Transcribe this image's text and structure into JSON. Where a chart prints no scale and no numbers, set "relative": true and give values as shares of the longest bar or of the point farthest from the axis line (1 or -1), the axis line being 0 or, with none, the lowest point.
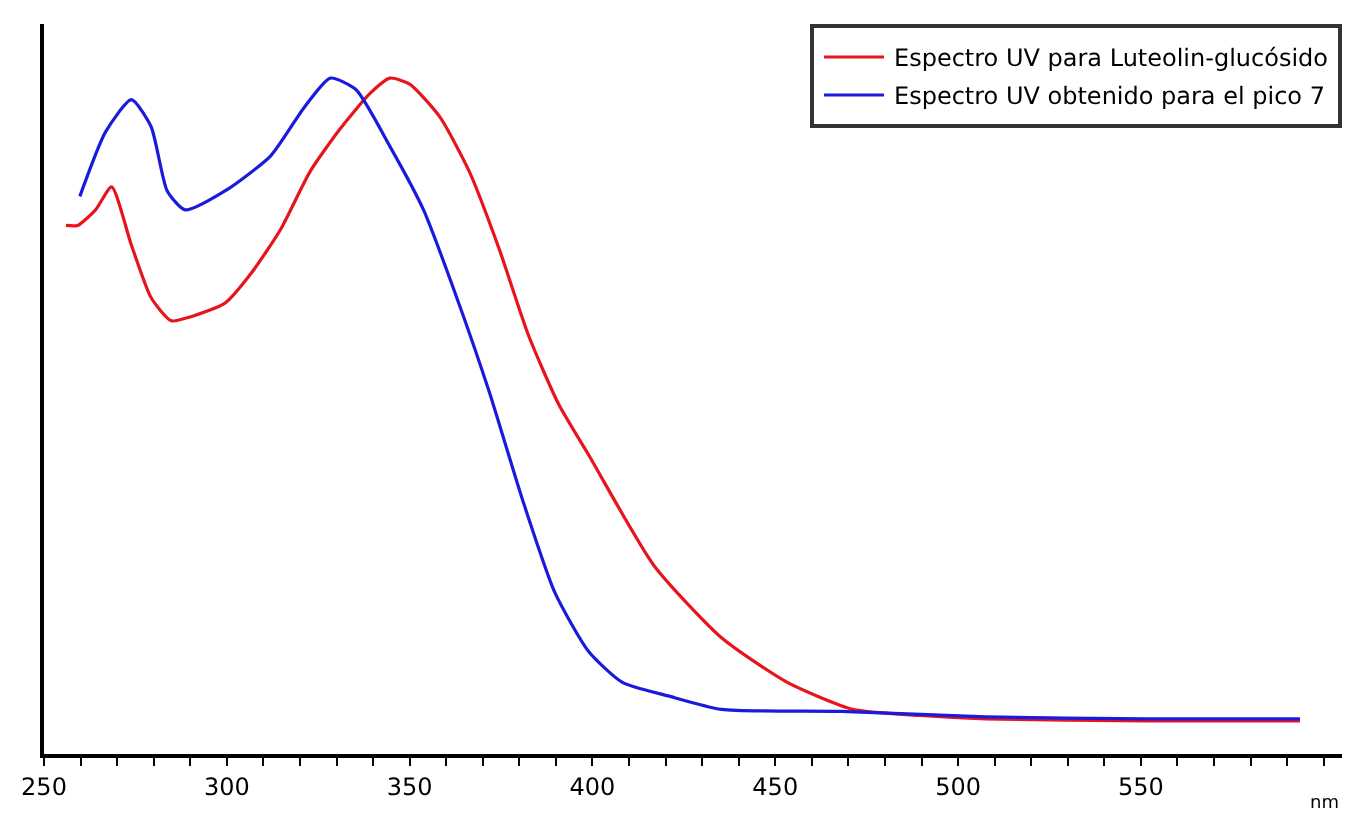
{
  "chart_data": {
    "type": "line",
    "xlabel": "nm",
    "relative": true,
    "tick_labels": "x",
    "legend": "top right",
    "marker": "none",
    "line_style": "solid",
    "xlim": [
      250,
      605
    ],
    "xticks": [
      250,
      {
        "value": 260,
        "label": null
      },
      {
        "value": 270,
        "label": null
      },
      {
        "value": 280,
        "label": null
      },
      {
        "value": 290,
        "label": null
      },
      300,
      {
        "value": 310,
        "label": null
      },
      {
        "value": 320,
        "label": null
      },
      {
        "value": 330,
        "label": null
      },
      {
        "value": 340,
        "label": null
      },
      350,
      {
        "value": 360,
        "label": null
      },
      {
        "value": 370,
        "label": null
      },
      {
        "value": 380,
        "label": null
      },
      {
        "value": 390,
        "label": null
      },
      400,
      {
        "value": 410,
        "label": null
      },
      {
        "value": 420,
        "label": null
      },
      {
        "value": 430,
        "label": null
      },
      {
        "value": 440,
        "label": null
      },
      450,
      {
        "value": 460,
        "label": null
      },
      {
        "value": 470,
        "label": null
      },
      {
        "value": 480,
        "label": null
      },
      {
        "value": 490,
        "label": null
      },
      500,
      {
        "value": 510,
        "label": null
      },
      {
        "value": 520,
        "label": null
      },
      {
        "value": 530,
        "label": null
      },
      {
        "value": 540,
        "label": null
      },
      550,
      {
        "value": 560,
        "label": null
      },
      {
        "value": 570,
        "label": null
      },
      {
        "value": 580,
        "label": null
      },
      {
        "value": 590,
        "label": null
      },
      {
        "value": 600,
        "label": null
      }
    ],
    "series": [
      {
        "name": "Espectro UV para Luteolin-glucósido",
        "color": "#e8141c",
        "x": [
          256.0,
          259.2,
          264.1,
          268.5,
          273.9,
          279.3,
          284.8,
          290.2,
          299.5,
          306.5,
          314.7,
          322.8,
          331.0,
          339.1,
          344.6,
          350.0,
          358.2,
          366.3,
          374.5,
          382.6,
          390.8,
          398.9,
          416.8,
          435.3,
          453.3,
          471.2,
          489.7,
          507.6,
          551.1,
          593.5
        ],
        "values": [
          0.782,
          0.782,
          0.805,
          0.839,
          0.753,
          0.675,
          0.641,
          0.647,
          0.667,
          0.71,
          0.776,
          0.862,
          0.925,
          0.977,
          1.0,
          0.991,
          0.943,
          0.862,
          0.747,
          0.618,
          0.517,
          0.443,
          0.279,
          0.172,
          0.106,
          0.066,
          0.057,
          0.052,
          0.049,
          0.049
        ]
      },
      {
        "name": "Espectro UV obtenido para el pico 7",
        "color": "#1a1adc",
        "x": [
          259.8,
          266.8,
          273.9,
          279.3,
          283.7,
          288.6,
          299.5,
          312.0,
          321.2,
          328.3,
          335.3,
          344.6,
          353.8,
          362.5,
          371.7,
          381.0,
          389.7,
          398.9,
          408.2,
          420.7,
          435.3,
          467.9,
          507.6,
          551.1,
          593.5
        ],
        "values": [
          0.825,
          0.92,
          0.968,
          0.928,
          0.833,
          0.805,
          0.833,
          0.885,
          0.957,
          1.0,
          0.983,
          0.899,
          0.805,
          0.681,
          0.537,
          0.374,
          0.239,
          0.152,
          0.106,
          0.086,
          0.066,
          0.063,
          0.055,
          0.052,
          0.052
        ]
      }
    ]
  }
}
